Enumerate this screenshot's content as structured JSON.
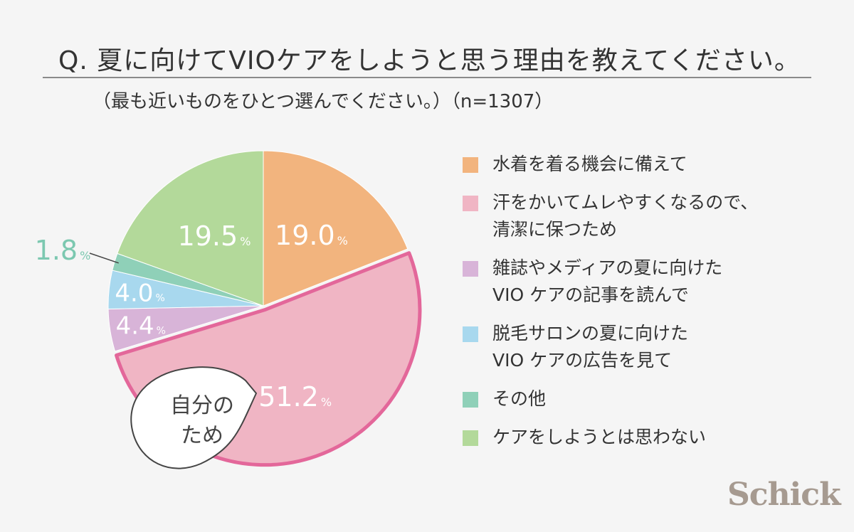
{
  "title": "Q.  夏に向けてVIOケアをしようと思う理由を教えてください。",
  "subtitle": "（最も近いものをひとつ選んでください。）（n=1307）",
  "callout": "自分の\nため",
  "logo": "Schick",
  "chart_data": {
    "type": "pie",
    "title": "Q.  夏に向けてVIOケアをしようと思う理由を教えてください。",
    "n": 1307,
    "start": "12 o'clock, clockwise",
    "slices": [
      {
        "label": "水着を着る機会に備えて",
        "value": 19.0,
        "display": "19.0",
        "color": "#f2b47e"
      },
      {
        "label": "汗をかいてムレやすくなるので、\n清潔に保つため",
        "value": 51.2,
        "display": "51.2",
        "color": "#f0b5c4",
        "highlight": true
      },
      {
        "label": "雑誌やメディアの夏に向けた\nVIO ケアの記事を読んで",
        "value": 4.4,
        "display": "4.4",
        "color": "#d8b4d8"
      },
      {
        "label": "脱毛サロンの夏に向けた\nVIO ケアの広告を見て",
        "value": 4.0,
        "display": "4.0",
        "color": "#a8d8ee"
      },
      {
        "label": "その他",
        "value": 1.8,
        "display": "1.8",
        "color": "#8fd0b8",
        "label_outside": true
      },
      {
        "label": "ケアをしようとは思わない",
        "value": 19.5,
        "display": "19.5",
        "color": "#b3d99a"
      }
    ],
    "unit": "%",
    "highlight_color": "#e3679a",
    "outside_label_color": "#7cc8b0"
  }
}
